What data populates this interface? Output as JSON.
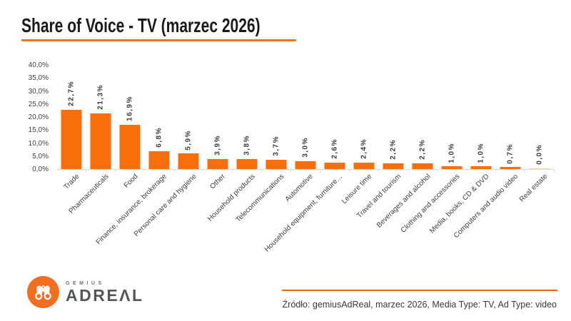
{
  "header": {
    "title": "Share of Voice - TV (marzec 2026)"
  },
  "chart_data": {
    "type": "bar",
    "title": "Share of Voice - TV (marzec 2026)",
    "categories": [
      "Trade",
      "Pharmaceuticals",
      "Food",
      "Finance, insurance, brokerage",
      "Personal care and hygiene",
      "Other",
      "Household products",
      "Telecommunications",
      "Automotive",
      "Household equipment, furniture…",
      "Leisure time",
      "Travel and tourism",
      "Beverages and alcohol",
      "Clothing and accessories",
      "Media, books, CD & DVD",
      "Computers and audio video",
      "Real estate"
    ],
    "values": [
      22.7,
      21.3,
      16.9,
      6.8,
      5.9,
      3.9,
      3.8,
      3.7,
      3.0,
      2.6,
      2.4,
      2.2,
      2.2,
      1.0,
      1.0,
      0.7,
      0.0
    ],
    "value_labels": [
      "22,7%",
      "21,3%",
      "16,9%",
      "6,8%",
      "5,9%",
      "3,9%",
      "3,8%",
      "3,7%",
      "3,0%",
      "2,6%",
      "2,4%",
      "2,2%",
      "2,2%",
      "1,0%",
      "1,0%",
      "0,7%",
      "0,0%"
    ],
    "y_ticks": [
      "40,0%",
      "35,0%",
      "30,0%",
      "25,0%",
      "20,0%",
      "15,0%",
      "10,0%",
      "5,0%",
      "0,0%"
    ],
    "ylim": [
      0,
      40
    ],
    "y_tick_step": 5,
    "xlabel": "",
    "ylabel": "",
    "grid": false,
    "legend": false,
    "bar_color": "#F86E0A",
    "zero_bar_color": "#FBCFA5"
  },
  "footer": {
    "logo": {
      "top": "GEMIUS",
      "bottom": "ADREΛL"
    },
    "source_text": "Źródło: gemiusAdReal, marzec 2026, Media Type: TV, Ad Type: video"
  },
  "colors": {
    "accent_orange": "#F47716",
    "source_line_orange": "#F3670C",
    "bar_orange": "#F86E0A",
    "title_color": "#1a1a1a",
    "axis_text": "#404040",
    "baseline_gray": "#d8d8d8",
    "logo_orange": "#F36D21",
    "logo_text_gray": "#54565A",
    "source_text_gray": "#3a3a3a"
  }
}
